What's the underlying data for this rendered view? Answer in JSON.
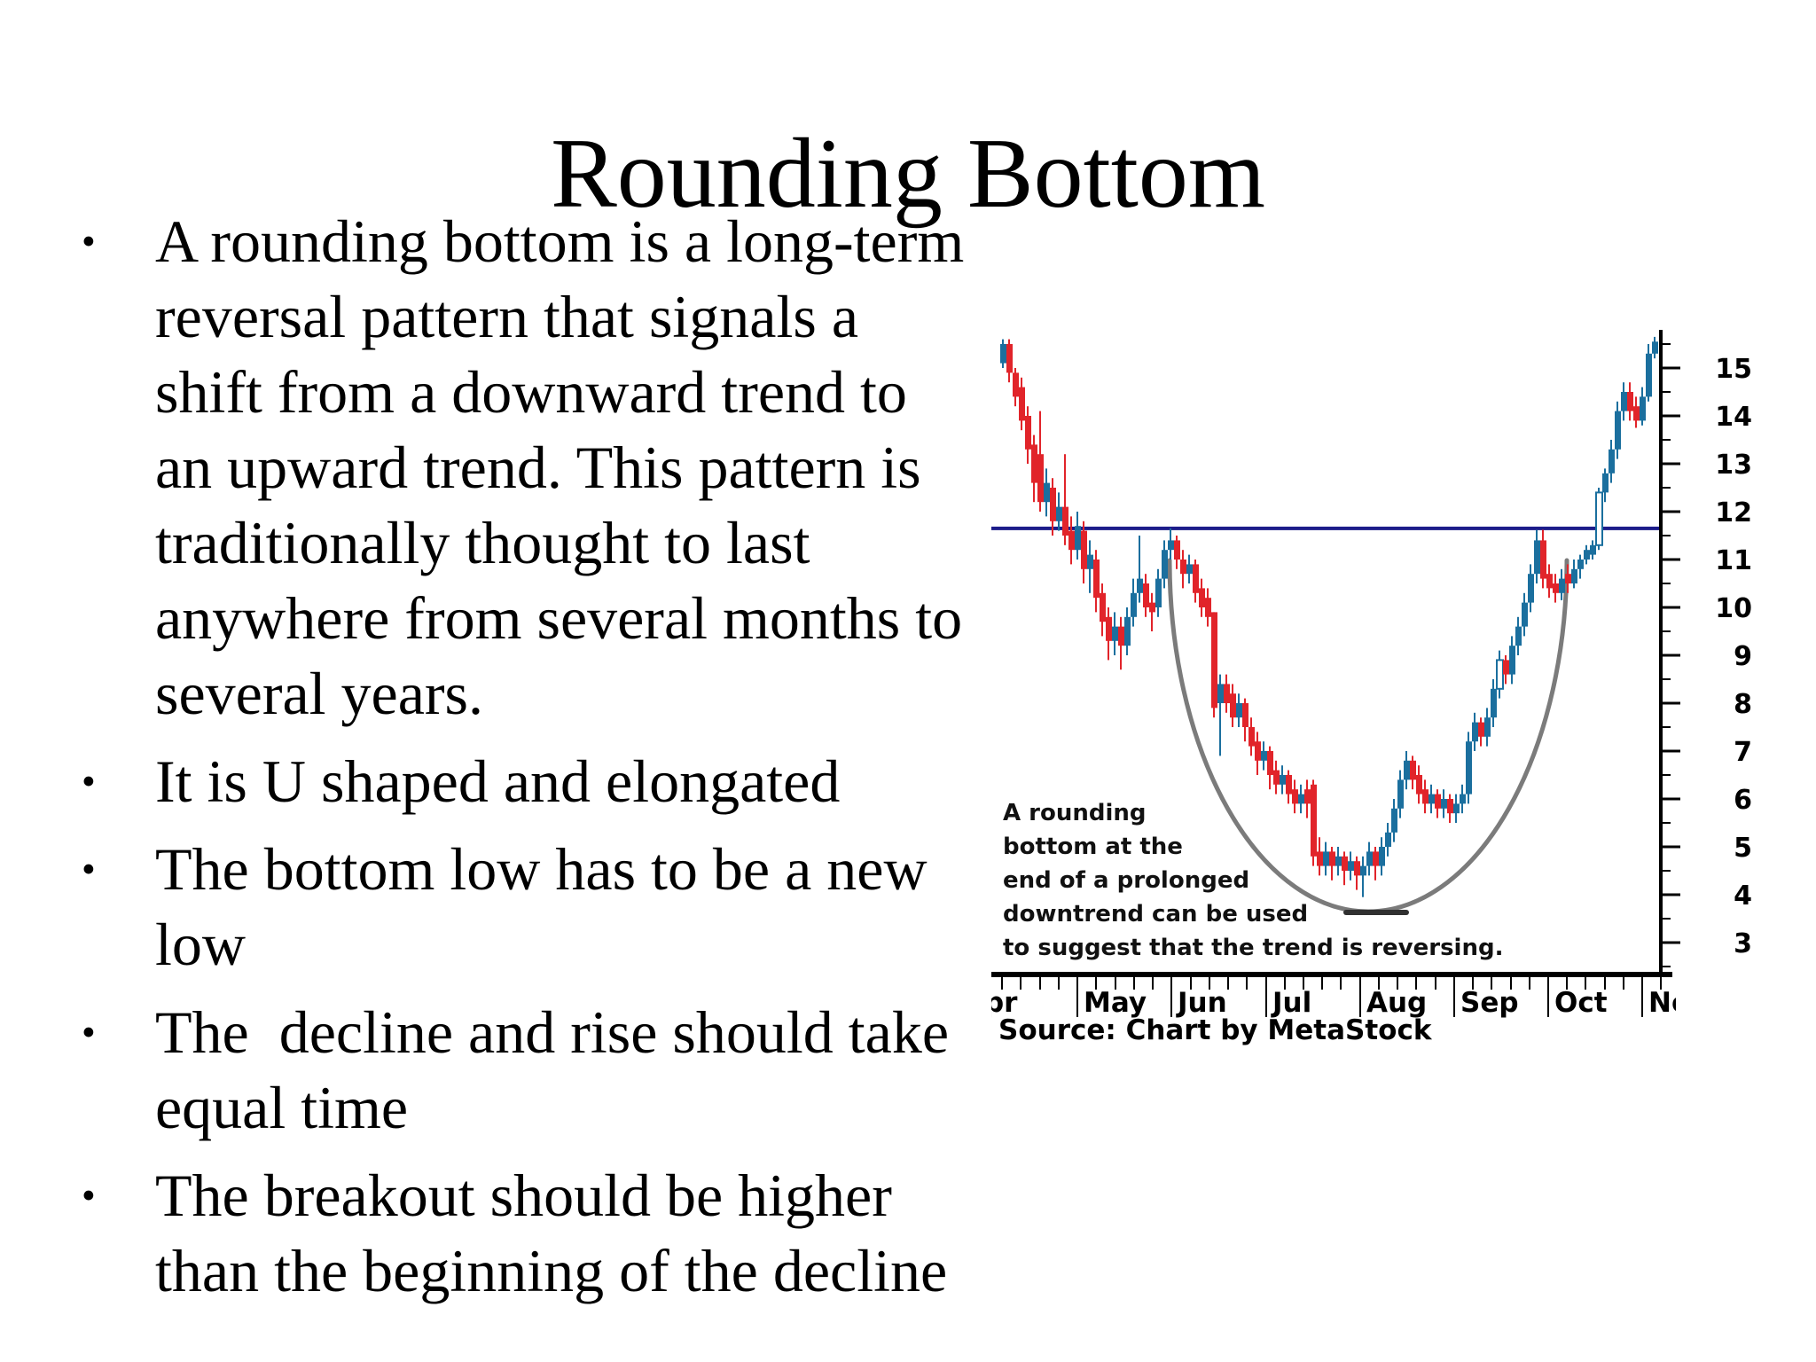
{
  "slide": {
    "title": "Rounding Bottom",
    "bullet_glyph": "•",
    "bullets": [
      {
        "text": "A rounding bottom is a long-term\nreversal pattern that signals a\nshift from a downward trend to\nan upward trend. This pattern is\ntraditionally thought to last\nanywhere from several months to\nseveral years."
      },
      {
        "text": "It is U shaped and elongated"
      },
      {
        "text": "The bottom low has to be a new\nlow"
      },
      {
        "text": "The  decline and rise should take\nequal time"
      },
      {
        "text": "The breakout should be higher\nthan the beginning of the decline"
      }
    ]
  },
  "chart": {
    "annotation": "A rounding\nbottom at the\nend of a prolonged\ndowntrend can be used\nto suggest that the trend is reversing.",
    "source": "Source: Chart by MetaStock",
    "colors": {
      "up": "#1b6f9e",
      "down": "#e1242a",
      "resistance": "#1c1c8a",
      "arc": "#7b7b7b",
      "arc_bottom": "#303030",
      "axis": "#000000"
    }
  },
  "chart_data": {
    "type": "candlestick",
    "description": "Rounding bottom reversal pattern: prolonged downtrend, U-shaped base under a horizontal resistance line near 11.65, then upside breakout",
    "x_tick_labels": [
      "Apr",
      "May",
      "Jun",
      "Jul",
      "Aug",
      "Sep",
      "Oct",
      "Nov"
    ],
    "y_tick_labels": [
      15,
      14,
      13,
      12,
      11,
      10,
      9,
      8,
      7,
      6,
      5,
      4,
      3
    ],
    "y_minor_step": 0.5,
    "y_range": [
      2.3,
      15.75
    ],
    "resistance_level": 11.65,
    "grid": false,
    "legend": null,
    "bars": [
      [
        15.1,
        15.6,
        15.0,
        15.5,
        "b"
      ],
      [
        15.5,
        15.6,
        14.7,
        14.9,
        "r"
      ],
      [
        14.9,
        15.0,
        14.2,
        14.4,
        "r"
      ],
      [
        14.6,
        14.8,
        13.7,
        13.9,
        "r"
      ],
      [
        14.0,
        14.2,
        13.0,
        13.3,
        "r"
      ],
      [
        13.4,
        13.6,
        12.2,
        12.6,
        "r"
      ],
      [
        13.2,
        14.1,
        12.0,
        12.2,
        "r"
      ],
      [
        12.2,
        12.9,
        11.9,
        12.6,
        "b"
      ],
      [
        12.5,
        12.7,
        11.5,
        11.8,
        "r"
      ],
      [
        11.8,
        12.4,
        11.6,
        12.1,
        "b"
      ],
      [
        12.1,
        13.2,
        11.3,
        11.5,
        "r"
      ],
      [
        11.6,
        11.9,
        10.9,
        11.2,
        "r"
      ],
      [
        11.2,
        12.0,
        11.0,
        11.7,
        "b"
      ],
      [
        11.6,
        11.8,
        10.5,
        10.8,
        "r"
      ],
      [
        10.8,
        11.4,
        10.3,
        11.1,
        "b"
      ],
      [
        11.0,
        11.2,
        9.9,
        10.2,
        "r"
      ],
      [
        10.3,
        10.5,
        9.4,
        9.7,
        "r"
      ],
      [
        9.8,
        10.0,
        8.9,
        9.3,
        "r"
      ],
      [
        9.3,
        9.9,
        9.0,
        9.6,
        "b"
      ],
      [
        9.6,
        9.8,
        8.7,
        9.2,
        "r"
      ],
      [
        9.2,
        10.0,
        9.0,
        9.8,
        "b"
      ],
      [
        9.8,
        10.6,
        9.6,
        10.3,
        "b"
      ],
      [
        10.3,
        11.5,
        10.1,
        10.6,
        "b"
      ],
      [
        10.5,
        10.7,
        9.8,
        10.0,
        "r"
      ],
      [
        10.1,
        10.3,
        9.5,
        9.9,
        "r"
      ],
      [
        10.0,
        10.8,
        9.8,
        10.6,
        "b"
      ],
      [
        10.6,
        11.4,
        10.4,
        11.2,
        "b"
      ],
      [
        11.2,
        11.65,
        11.0,
        11.4,
        "b"
      ],
      [
        11.4,
        11.5,
        10.8,
        11.0,
        "r"
      ],
      [
        11.0,
        11.2,
        10.4,
        10.7,
        "r"
      ],
      [
        10.7,
        11.1,
        10.5,
        10.9,
        "b"
      ],
      [
        10.9,
        11.0,
        10.1,
        10.3,
        "r"
      ],
      [
        10.4,
        10.6,
        9.8,
        10.0,
        "r"
      ],
      [
        10.2,
        10.4,
        9.6,
        9.8,
        "r"
      ],
      [
        9.9,
        9.9,
        7.7,
        7.9,
        "r"
      ],
      [
        8.0,
        8.6,
        6.9,
        8.4,
        "b"
      ],
      [
        8.4,
        8.6,
        7.8,
        8.0,
        "r"
      ],
      [
        8.2,
        8.4,
        7.5,
        7.7,
        "r"
      ],
      [
        7.7,
        8.2,
        7.5,
        8.0,
        "b"
      ],
      [
        8.0,
        8.1,
        7.2,
        7.5,
        "r"
      ],
      [
        7.5,
        7.7,
        6.9,
        7.1,
        "r"
      ],
      [
        7.2,
        7.4,
        6.5,
        6.8,
        "r"
      ],
      [
        6.8,
        7.2,
        6.6,
        7.0,
        "b"
      ],
      [
        7.0,
        7.1,
        6.2,
        6.5,
        "r"
      ],
      [
        6.6,
        6.8,
        6.1,
        6.3,
        "r"
      ],
      [
        6.3,
        6.7,
        6.1,
        6.5,
        "b"
      ],
      [
        6.5,
        6.6,
        5.9,
        6.1,
        "r"
      ],
      [
        6.2,
        6.4,
        5.7,
        5.9,
        "r"
      ],
      [
        5.9,
        6.3,
        5.7,
        6.1,
        "b"
      ],
      [
        6.2,
        6.4,
        5.6,
        5.9,
        "r"
      ],
      [
        6.3,
        6.4,
        4.6,
        4.8,
        "r"
      ],
      [
        4.9,
        5.2,
        4.4,
        4.6,
        "r"
      ],
      [
        4.6,
        5.1,
        4.4,
        4.9,
        "b"
      ],
      [
        4.9,
        5.0,
        4.3,
        4.6,
        "r"
      ],
      [
        4.6,
        5.0,
        4.4,
        4.8,
        "b"
      ],
      [
        4.8,
        4.9,
        4.2,
        4.5,
        "r"
      ],
      [
        4.5,
        4.9,
        4.3,
        4.7,
        "b"
      ],
      [
        4.7,
        4.8,
        4.1,
        4.4,
        "r"
      ],
      [
        4.4,
        4.8,
        3.95,
        4.6,
        "b"
      ],
      [
        4.6,
        5.1,
        4.4,
        4.9,
        "b"
      ],
      [
        4.9,
        5.0,
        4.3,
        4.6,
        "r"
      ],
      [
        4.6,
        5.2,
        4.4,
        5.0,
        "b"
      ],
      [
        5.0,
        5.5,
        4.8,
        5.3,
        "b"
      ],
      [
        5.3,
        6.0,
        5.1,
        5.8,
        "b"
      ],
      [
        5.8,
        6.6,
        5.6,
        6.4,
        "b"
      ],
      [
        6.4,
        7.0,
        6.2,
        6.8,
        "b"
      ],
      [
        6.8,
        6.9,
        6.2,
        6.4,
        "r"
      ],
      [
        6.5,
        6.7,
        5.9,
        6.1,
        "r"
      ],
      [
        6.2,
        6.4,
        5.7,
        5.9,
        "r"
      ],
      [
        5.9,
        6.3,
        5.7,
        6.1,
        "b"
      ],
      [
        6.1,
        6.2,
        5.6,
        5.8,
        "r"
      ],
      [
        5.8,
        6.2,
        5.6,
        6.0,
        "b"
      ],
      [
        6.0,
        6.1,
        5.5,
        5.7,
        "r"
      ],
      [
        5.7,
        6.1,
        5.5,
        5.9,
        "b"
      ],
      [
        5.9,
        6.3,
        5.7,
        6.1,
        "b"
      ],
      [
        6.1,
        7.4,
        5.9,
        7.2,
        "b"
      ],
      [
        7.2,
        7.8,
        7.0,
        7.6,
        "b"
      ],
      [
        7.6,
        7.7,
        7.1,
        7.3,
        "r"
      ],
      [
        7.3,
        7.9,
        7.1,
        7.7,
        "b"
      ],
      [
        7.7,
        8.5,
        7.5,
        8.3,
        "b"
      ],
      [
        8.3,
        9.1,
        8.1,
        8.9,
        "bh"
      ],
      [
        8.9,
        9.0,
        8.4,
        8.6,
        "r"
      ],
      [
        8.6,
        9.4,
        8.4,
        9.2,
        "b"
      ],
      [
        9.2,
        9.8,
        9.0,
        9.6,
        "b"
      ],
      [
        9.6,
        10.3,
        9.4,
        10.1,
        "b"
      ],
      [
        10.1,
        10.9,
        9.9,
        10.7,
        "b"
      ],
      [
        10.7,
        11.62,
        10.5,
        11.4,
        "b"
      ],
      [
        11.4,
        11.62,
        10.4,
        10.6,
        "r"
      ],
      [
        10.7,
        10.9,
        10.2,
        10.4,
        "r"
      ],
      [
        10.5,
        10.7,
        10.1,
        10.3,
        "r"
      ],
      [
        10.3,
        10.8,
        10.15,
        10.6,
        "b"
      ],
      [
        10.7,
        10.9,
        10.3,
        10.5,
        "r"
      ],
      [
        10.5,
        11.0,
        10.4,
        10.8,
        "b"
      ],
      [
        10.8,
        11.1,
        10.6,
        11.0,
        "b"
      ],
      [
        11.0,
        11.3,
        10.9,
        11.2,
        "b"
      ],
      [
        11.1,
        11.4,
        11.0,
        11.3,
        "b"
      ],
      [
        11.3,
        12.5,
        11.2,
        12.4,
        "bh"
      ],
      [
        12.4,
        12.9,
        12.2,
        12.8,
        "b"
      ],
      [
        12.8,
        13.5,
        12.6,
        13.3,
        "b"
      ],
      [
        13.3,
        14.3,
        13.1,
        14.1,
        "b"
      ],
      [
        14.1,
        14.7,
        13.9,
        14.5,
        "b"
      ],
      [
        14.5,
        14.7,
        13.9,
        14.1,
        "r"
      ],
      [
        14.2,
        14.4,
        13.75,
        13.9,
        "r"
      ],
      [
        13.9,
        14.6,
        13.8,
        14.4,
        "b"
      ],
      [
        14.4,
        15.5,
        14.3,
        15.3,
        "b"
      ],
      [
        15.3,
        15.65,
        15.2,
        15.55,
        "b"
      ]
    ]
  }
}
